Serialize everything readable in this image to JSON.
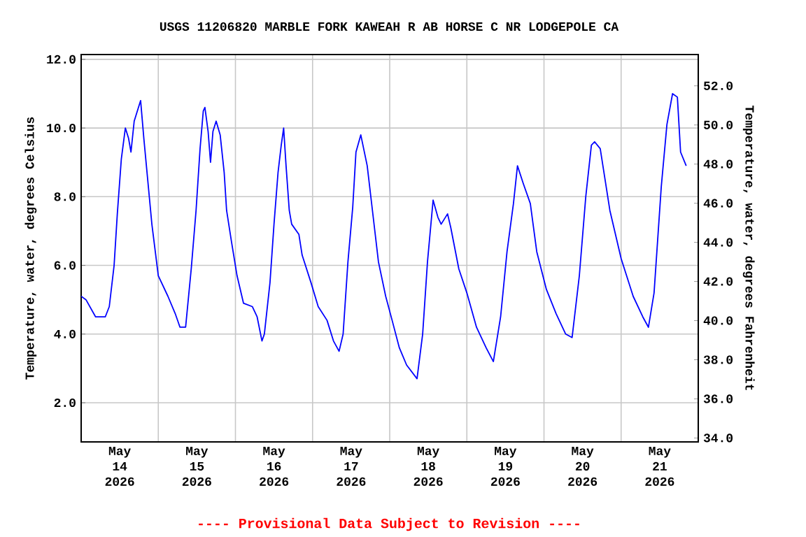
{
  "chart_data": {
    "type": "line",
    "title": "USGS 11206820 MARBLE FORK KAWEAH R AB HORSE C NR LODGEPOLE CA",
    "annotations": [
      "---- Provisional Data Subject to Revision ----"
    ],
    "ylabel": "Temperature, water, degrees Celsius",
    "y2label": "Temperature, water, degrees Fahrenheit",
    "color": "#0000ff",
    "grid": true,
    "xlim": [
      "2026-05-14T00:00",
      "2026-05-22T00:00"
    ],
    "xticks": [
      {
        "value": "2026-05-14T12:00",
        "label": "May 14 2026"
      },
      {
        "value": "2026-05-15T12:00",
        "label": "May 15 2026"
      },
      {
        "value": "2026-05-16T12:00",
        "label": "May 16 2026"
      },
      {
        "value": "2026-05-17T12:00",
        "label": "May 17 2026"
      },
      {
        "value": "2026-05-18T12:00",
        "label": "May 18 2026"
      },
      {
        "value": "2026-05-19T12:00",
        "label": "May 19 2026"
      },
      {
        "value": "2026-05-20T12:00",
        "label": "May 20 2026"
      },
      {
        "value": "2026-05-21T12:00",
        "label": "May 21 2026"
      },
      {
        "value": "2026-05-15T00:00",
        "label": null
      },
      {
        "value": "2026-05-16T00:00",
        "label": null
      },
      {
        "value": "2026-05-17T00:00",
        "label": null
      },
      {
        "value": "2026-05-18T00:00",
        "label": null
      },
      {
        "value": "2026-05-19T00:00",
        "label": null
      },
      {
        "value": "2026-05-20T00:00",
        "label": null
      },
      {
        "value": "2026-05-21T00:00",
        "label": null
      }
    ],
    "ylim": [
      0.86,
      12.14
    ],
    "yticks": [
      {
        "value": 2,
        "label": "2.0"
      },
      {
        "value": 4,
        "label": "4.0"
      },
      {
        "value": 6,
        "label": "6.0"
      },
      {
        "value": 8,
        "label": "8.0"
      },
      {
        "value": 10,
        "label": "10.0"
      },
      {
        "value": 12,
        "label": "12.0"
      }
    ],
    "y2lim": [
      33.8,
      53.6
    ],
    "y2ticks": [
      {
        "value": 34,
        "label": "34.0"
      },
      {
        "value": 36,
        "label": "36.0"
      },
      {
        "value": 38,
        "label": "38.0"
      },
      {
        "value": 40,
        "label": "40.0"
      },
      {
        "value": 42,
        "label": "42.0"
      },
      {
        "value": 44,
        "label": "44.0"
      },
      {
        "value": 46,
        "label": "46.0"
      },
      {
        "value": 48,
        "label": "48.0"
      },
      {
        "value": 50,
        "label": "50.0"
      },
      {
        "value": 52,
        "label": "52.0"
      }
    ],
    "x": [
      "2026-05-14T00:00",
      "2026-05-14T01:30",
      "2026-05-14T04:30",
      "2026-05-14T07:30",
      "2026-05-14T08:45",
      "2026-05-14T10:15",
      "2026-05-14T11:15",
      "2026-05-14T12:30",
      "2026-05-14T13:45",
      "2026-05-14T14:45",
      "2026-05-14T15:30",
      "2026-05-14T16:30",
      "2026-05-14T17:30",
      "2026-05-14T18:30",
      "2026-05-14T19:30",
      "2026-05-14T21:00",
      "2026-05-14T22:00",
      "2026-05-15T00:00",
      "2026-05-15T03:00",
      "2026-05-15T05:15",
      "2026-05-15T06:45",
      "2026-05-15T08:30",
      "2026-05-15T10:15",
      "2026-05-15T11:45",
      "2026-05-15T13:00",
      "2026-05-15T14:00",
      "2026-05-15T14:30",
      "2026-05-15T15:30",
      "2026-05-15T16:15",
      "2026-05-15T17:00",
      "2026-05-15T18:00",
      "2026-05-15T19:15",
      "2026-05-15T20:30",
      "2026-05-15T21:15",
      "2026-05-15T22:45",
      "2026-05-16T00:30",
      "2026-05-16T02:30",
      "2026-05-16T05:15",
      "2026-05-16T06:45",
      "2026-05-16T08:15",
      "2026-05-16T09:00",
      "2026-05-16T10:45",
      "2026-05-16T12:00",
      "2026-05-16T13:15",
      "2026-05-16T14:15",
      "2026-05-16T15:00",
      "2026-05-16T15:45",
      "2026-05-16T16:45",
      "2026-05-16T17:30",
      "2026-05-16T19:45",
      "2026-05-16T20:45",
      "2026-05-16T23:30",
      "2026-05-17T01:45",
      "2026-05-17T04:30",
      "2026-05-17T06:30",
      "2026-05-17T08:15",
      "2026-05-17T09:30",
      "2026-05-17T11:00",
      "2026-05-17T12:30",
      "2026-05-17T13:30",
      "2026-05-17T15:00",
      "2026-05-17T17:00",
      "2026-05-17T18:15",
      "2026-05-17T20:30",
      "2026-05-17T22:45",
      "2026-05-18T00:45",
      "2026-05-18T03:00",
      "2026-05-18T05:15",
      "2026-05-18T08:30",
      "2026-05-18T10:15",
      "2026-05-18T11:45",
      "2026-05-18T13:30",
      "2026-05-18T15:00",
      "2026-05-18T16:00",
      "2026-05-18T18:00",
      "2026-05-18T19:00",
      "2026-05-18T21:30",
      "2026-05-19T00:00",
      "2026-05-19T03:00",
      "2026-05-19T06:00",
      "2026-05-19T08:15",
      "2026-05-19T10:30",
      "2026-05-19T12:30",
      "2026-05-19T14:30",
      "2026-05-19T15:45",
      "2026-05-19T17:30",
      "2026-05-19T19:45",
      "2026-05-19T21:45",
      "2026-05-20T00:45",
      "2026-05-20T03:45",
      "2026-05-20T06:45",
      "2026-05-20T08:45",
      "2026-05-20T11:00",
      "2026-05-20T13:00",
      "2026-05-20T14:45",
      "2026-05-20T15:45",
      "2026-05-20T17:30",
      "2026-05-20T20:30",
      "2026-05-21T00:00",
      "2026-05-21T03:45",
      "2026-05-21T06:45",
      "2026-05-21T08:30",
      "2026-05-21T10:15",
      "2026-05-21T12:30",
      "2026-05-21T14:15",
      "2026-05-21T16:00",
      "2026-05-21T17:30",
      "2026-05-21T18:30",
      "2026-05-21T20:15"
    ],
    "values": [
      5.1,
      5.0,
      4.5,
      4.5,
      4.8,
      6.0,
      7.5,
      9.1,
      10.0,
      9.7,
      9.3,
      10.2,
      10.5,
      10.8,
      9.7,
      8.2,
      7.2,
      5.7,
      5.1,
      4.6,
      4.2,
      4.2,
      5.9,
      7.6,
      9.4,
      10.5,
      10.6,
      9.9,
      9.0,
      9.9,
      10.2,
      9.8,
      8.7,
      7.6,
      6.7,
      5.7,
      4.9,
      4.8,
      4.5,
      3.8,
      4.0,
      5.5,
      7.2,
      8.7,
      9.5,
      10.0,
      8.9,
      7.6,
      7.2,
      6.9,
      6.3,
      5.5,
      4.8,
      4.4,
      3.8,
      3.5,
      4.0,
      6.1,
      7.7,
      9.3,
      9.8,
      8.9,
      7.9,
      6.1,
      5.1,
      4.4,
      3.6,
      3.1,
      2.7,
      4.0,
      6.1,
      7.9,
      7.4,
      7.2,
      7.5,
      7.1,
      5.9,
      5.2,
      4.2,
      3.6,
      3.2,
      4.5,
      6.4,
      7.8,
      8.9,
      8.4,
      7.8,
      6.4,
      5.3,
      4.6,
      4.0,
      3.9,
      5.7,
      8.0,
      9.5,
      9.6,
      9.4,
      7.6,
      6.2,
      5.1,
      4.5,
      4.2,
      5.2,
      8.3,
      10.1,
      11.0,
      10.9,
      9.3,
      8.9
    ]
  }
}
